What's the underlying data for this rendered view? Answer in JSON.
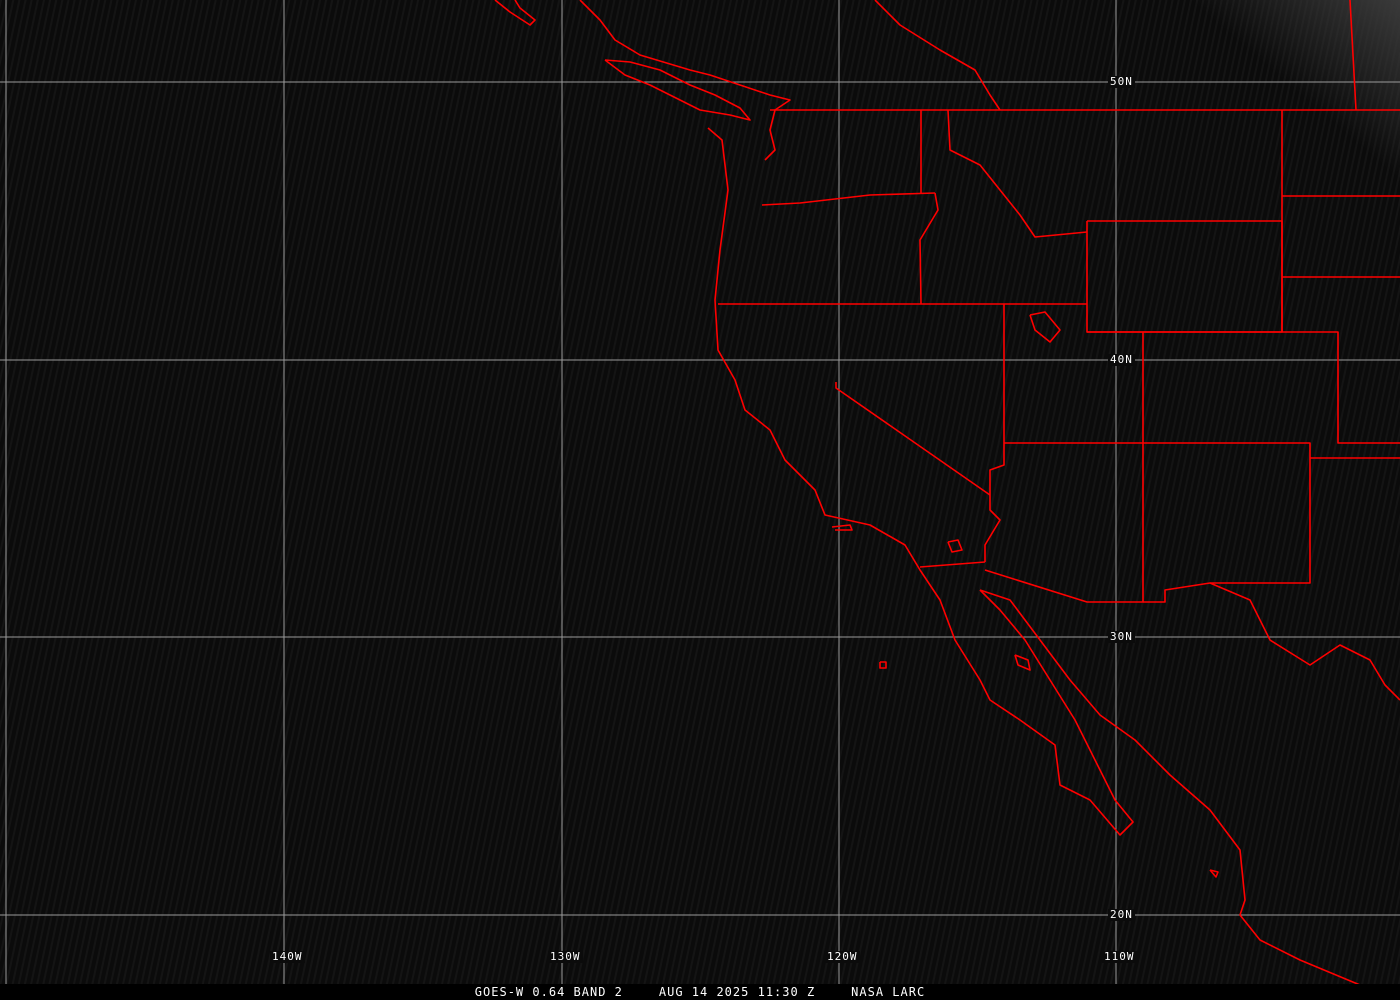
{
  "image": {
    "satellite": "GOES-W",
    "band": "0.64 BAND 2",
    "date": "AUG 14 2025",
    "time": "11:30 Z",
    "source": "NASA LARC"
  },
  "colors": {
    "borders": "#ff0000",
    "grid": "#9a9a9a",
    "background": "#0b0b0b"
  },
  "grid": {
    "longitude_labels": [
      "140W",
      "130W",
      "120W",
      "110W"
    ],
    "latitude_labels": [
      "50N",
      "40N",
      "30N",
      "20N"
    ]
  }
}
